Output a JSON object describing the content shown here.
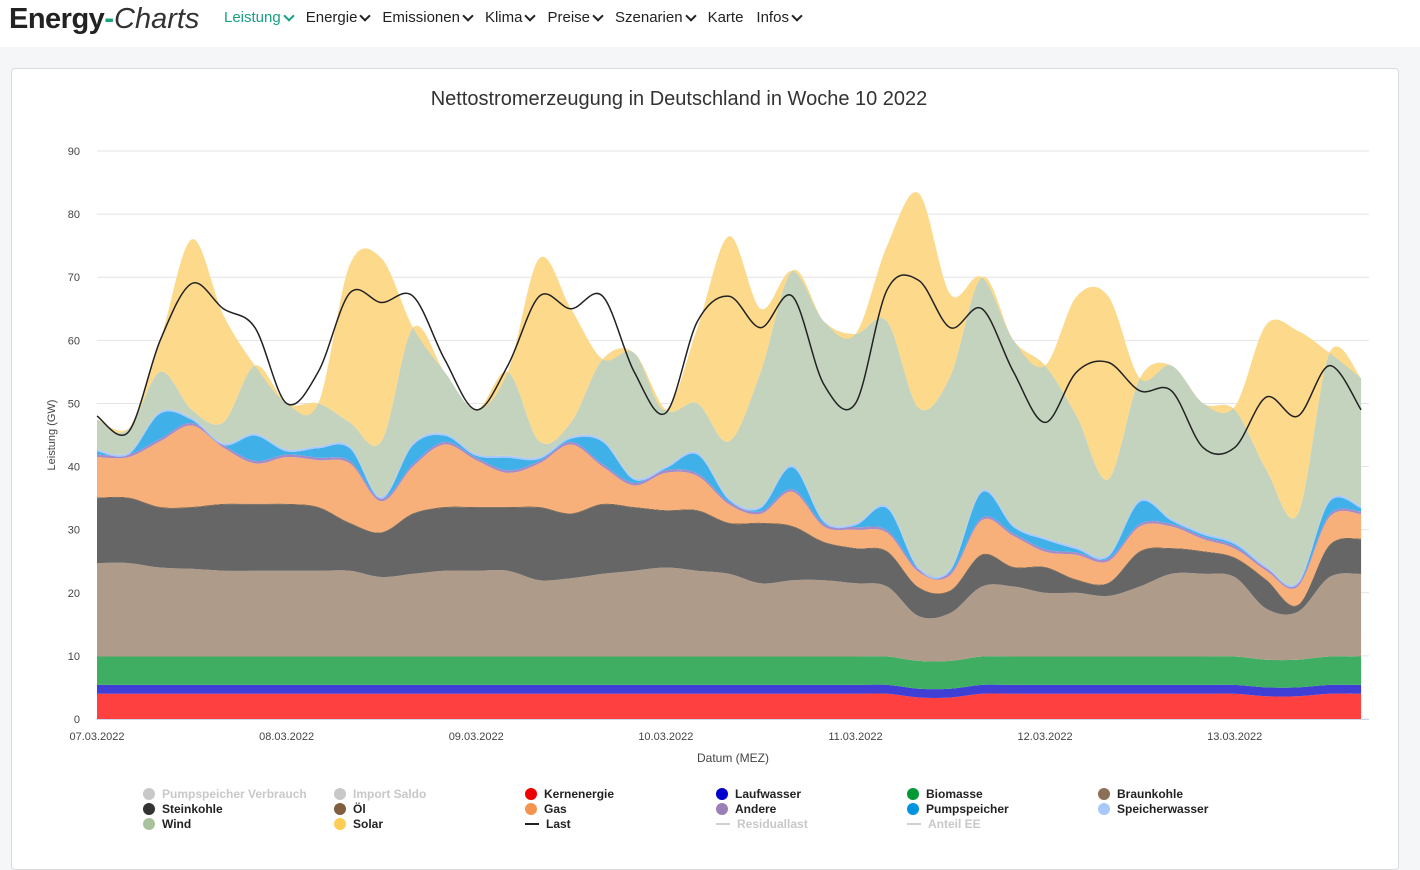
{
  "header": {
    "logo_main": "Energy",
    "logo_dash": "-",
    "logo_italic": "Charts",
    "nav": [
      {
        "label": "Leistung",
        "dropdown": true,
        "active": true
      },
      {
        "label": "Energie",
        "dropdown": true
      },
      {
        "label": "Emissionen",
        "dropdown": true
      },
      {
        "label": "Klima",
        "dropdown": true
      },
      {
        "label": "Preise",
        "dropdown": true
      },
      {
        "label": "Szenarien",
        "dropdown": true
      },
      {
        "label": "Karte",
        "dropdown": false
      },
      {
        "label": "Infos",
        "dropdown": true
      }
    ]
  },
  "chart_data": {
    "type": "area",
    "stacked": true,
    "title": "Nettostromerzeugung in Deutschland in Woche 10 2022",
    "xlabel": "Datum (MEZ)",
    "ylabel": "Leistung (GW)",
    "ylim": [
      0,
      90
    ],
    "yticks": [
      0,
      10,
      20,
      30,
      40,
      50,
      60,
      70,
      80,
      90
    ],
    "x_unit": "hours since 07.03.2022 00:00",
    "xlim": [
      0,
      161
    ],
    "xticks": [
      {
        "x": 0,
        "label": "07.03.2022"
      },
      {
        "x": 24,
        "label": "08.03.2022"
      },
      {
        "x": 48,
        "label": "09.03.2022"
      },
      {
        "x": 72,
        "label": "10.03.2022"
      },
      {
        "x": 96,
        "label": "11.03.2022"
      },
      {
        "x": 120,
        "label": "12.03.2022"
      },
      {
        "x": 144,
        "label": "13.03.2022"
      }
    ],
    "grid": true,
    "legend_position": "bottom",
    "x": [
      0,
      4,
      8,
      12,
      16,
      20,
      24,
      28,
      32,
      36,
      40,
      44,
      48,
      52,
      56,
      60,
      64,
      68,
      72,
      76,
      80,
      84,
      88,
      92,
      96,
      100,
      104,
      108,
      112,
      116,
      120,
      124,
      128,
      132,
      136,
      140,
      144,
      148,
      152,
      156,
      160
    ],
    "series": [
      {
        "name": "Kernenergie",
        "color": "#ff4040",
        "legend_color": "#ee0000",
        "values": [
          4,
          4,
          4,
          4,
          4,
          4,
          4,
          4,
          4,
          4,
          4,
          4,
          4,
          4,
          4,
          4,
          4,
          4,
          4,
          4,
          4,
          4,
          4,
          4,
          4,
          4,
          3.4,
          3.4,
          4,
          4,
          4,
          4,
          4,
          4,
          4,
          4,
          4,
          3.6,
          3.6,
          4,
          4
        ]
      },
      {
        "name": "Laufwasser",
        "color": "#3f3fd6",
        "legend_color": "#0000cc",
        "values": [
          1.4,
          1.4,
          1.4,
          1.4,
          1.4,
          1.4,
          1.4,
          1.4,
          1.4,
          1.4,
          1.4,
          1.4,
          1.4,
          1.4,
          1.4,
          1.4,
          1.4,
          1.4,
          1.4,
          1.4,
          1.4,
          1.4,
          1.4,
          1.4,
          1.4,
          1.4,
          1.4,
          1.4,
          1.4,
          1.4,
          1.4,
          1.4,
          1.4,
          1.4,
          1.4,
          1.4,
          1.4,
          1.4,
          1.4,
          1.4,
          1.4
        ]
      },
      {
        "name": "Biomasse",
        "color": "#3fae63",
        "legend_color": "#009933",
        "values": [
          4.5,
          4.5,
          4.5,
          4.5,
          4.5,
          4.5,
          4.5,
          4.5,
          4.5,
          4.5,
          4.5,
          4.5,
          4.5,
          4.5,
          4.5,
          4.5,
          4.5,
          4.5,
          4.5,
          4.5,
          4.5,
          4.5,
          4.5,
          4.5,
          4.5,
          4.5,
          4.4,
          4.4,
          4.5,
          4.5,
          4.5,
          4.5,
          4.5,
          4.5,
          4.5,
          4.5,
          4.5,
          4.4,
          4.4,
          4.5,
          4.5
        ]
      },
      {
        "name": "Braunkohle",
        "color": "#af9b8a",
        "legend_color": "#8b6f57",
        "values": [
          14.8,
          14.8,
          14.1,
          13.9,
          13.6,
          13.6,
          13.6,
          13.6,
          13.6,
          12.6,
          13.1,
          13.6,
          13.6,
          13.6,
          12.1,
          12.4,
          13.1,
          13.6,
          14.1,
          13.6,
          13.1,
          11.6,
          12.1,
          12.1,
          11.6,
          11.1,
          7.1,
          7.6,
          11.1,
          11.1,
          10.1,
          10.1,
          9.6,
          11.1,
          13.1,
          13.1,
          12.6,
          8.1,
          7.6,
          12.6,
          13.1
        ]
      },
      {
        "name": "Steinkohle",
        "color": "#666666",
        "legend_color": "#333333",
        "values": [
          10.3,
          10.3,
          9.5,
          9.7,
          10.5,
          10.5,
          10.5,
          10,
          7.5,
          7,
          9.5,
          10,
          10,
          10,
          11.5,
          10.2,
          11,
          10,
          9,
          9.5,
          8,
          9.5,
          8.5,
          6,
          5.5,
          5.5,
          4.5,
          3.5,
          5,
          3,
          4,
          2,
          2,
          5.5,
          4,
          3.5,
          3,
          4.5,
          1,
          5,
          5.5
        ]
      },
      {
        "name": "Öl",
        "color": "#7f5f3f",
        "legend_color": "#7f5f3f",
        "values": [
          0.1,
          0.1,
          0.1,
          0.1,
          0.1,
          0.1,
          0.1,
          0.1,
          0.1,
          0.1,
          0.1,
          0.1,
          0.1,
          0.1,
          0.1,
          0.1,
          0.1,
          0.1,
          0.1,
          0.1,
          0.1,
          0.1,
          0.1,
          0.1,
          0.1,
          0.1,
          0.1,
          0.1,
          0.1,
          0.1,
          0.1,
          0.1,
          0.1,
          0.1,
          0.1,
          0.1,
          0.1,
          0.1,
          0.1,
          0.1,
          0.1
        ]
      },
      {
        "name": "Gas",
        "color": "#f8b07a",
        "legend_color": "#f59450",
        "values": [
          6.4,
          6.4,
          10.4,
          12.9,
          8.9,
          6.4,
          7.4,
          7.4,
          9.4,
          4.9,
          7.4,
          9.9,
          7.4,
          5.4,
          6.9,
          10.9,
          5.9,
          3.4,
          5.9,
          5.4,
          2.9,
          1.4,
          5.4,
          2.4,
          2.9,
          2.9,
          2.4,
          2.4,
          5.4,
          4.9,
          2.4,
          3.9,
          3.4,
          3.9,
          3.4,
          1.9,
          1.4,
          1.4,
          2.9,
          4.4,
          3.9
        ]
      },
      {
        "name": "Andere",
        "color": "#a58cc8",
        "legend_color": "#9b7fb8",
        "values": [
          0.4,
          0.4,
          0.4,
          0.4,
          0.4,
          0.4,
          0.4,
          0.4,
          0.4,
          0.4,
          0.4,
          0.4,
          0.4,
          0.4,
          0.4,
          0.4,
          0.4,
          0.4,
          0.4,
          0.4,
          0.4,
          0.4,
          0.4,
          0.4,
          0.4,
          0.4,
          0.4,
          0.4,
          0.4,
          0.4,
          0.4,
          0.4,
          0.4,
          0.4,
          0.4,
          0.4,
          0.4,
          0.4,
          0.4,
          0.4,
          0.4
        ]
      },
      {
        "name": "Pumpspeicher",
        "color": "#40b0e8",
        "legend_color": "#0094e0",
        "values": [
          0.5,
          0,
          4,
          0.5,
          0,
          4,
          0.5,
          1.5,
          2,
          0,
          3,
          1,
          0.3,
          2,
          0.3,
          0.5,
          3.5,
          0.5,
          0.3,
          3,
          0.3,
          0.5,
          3.5,
          0.3,
          0.3,
          3.5,
          0,
          0.3,
          4,
          1,
          1.5,
          0.5,
          0.3,
          3.5,
          0.5,
          0.3,
          0.3,
          0,
          0,
          2,
          0.5
        ]
      },
      {
        "name": "Speicherwasser",
        "color": "#a8c8ff",
        "legend_color": "#a8c8ff",
        "values": [
          0.3,
          0.3,
          0.3,
          0.3,
          0.3,
          0.3,
          0.3,
          0.3,
          0.3,
          0.3,
          0.3,
          0.3,
          0.3,
          0.3,
          0.3,
          0.3,
          0.3,
          0.3,
          0.3,
          0.3,
          0.3,
          0.3,
          0.3,
          0.3,
          0.3,
          0.3,
          0.3,
          0.3,
          0.3,
          0.3,
          0.3,
          0.3,
          0.3,
          0.3,
          0.3,
          0.3,
          0.3,
          0.3,
          0.3,
          0.3,
          0.3
        ]
      },
      {
        "name": "Wind",
        "color": "#c3d3bd",
        "legend_color": "#a8c29f",
        "values": [
          4.8,
          3.8,
          6.3,
          1.3,
          3.3,
          10.8,
          7.3,
          6.8,
          3.8,
          8.8,
          18.3,
          9.8,
          7,
          13.3,
          2.5,
          2.3,
          12.8,
          19.8,
          9,
          7.8,
          9,
          21.3,
          30.8,
          31.5,
          30,
          29.3,
          25.3,
          30.5,
          33.8,
          29.3,
          27.3,
          20.8,
          12,
          19.3,
          24.3,
          20.5,
          21,
          15.3,
          10.8,
          23.3,
          20.3
        ]
      },
      {
        "name": "Solar",
        "color": "#fdd98c",
        "legend_color": "#ffcc55",
        "values": [
          0,
          0,
          5,
          27,
          17,
          0,
          0,
          0,
          25,
          29,
          0,
          0,
          0,
          0,
          29,
          18,
          0,
          0,
          0,
          12,
          32.5,
          10,
          0,
          0,
          0,
          12,
          34,
          13,
          0,
          0,
          0,
          19,
          29,
          0,
          0,
          0,
          0.5,
          23,
          29,
          0,
          0
        ]
      }
    ],
    "lines": [
      {
        "name": "Last",
        "color": "#222222",
        "values": [
          48,
          45.5,
          60,
          69,
          65,
          62,
          50,
          55,
          67.5,
          66,
          67,
          57,
          49,
          56,
          67,
          65,
          67,
          55,
          48.5,
          63,
          67,
          62,
          67,
          53,
          50,
          68,
          69.5,
          62,
          65,
          55,
          47,
          55,
          56.5,
          52,
          52,
          43,
          43,
          51,
          48,
          56,
          49
        ]
      }
    ],
    "legend": [
      {
        "label": "Pumpspeicher Verbrauch",
        "marker": "dot",
        "color": "#c8c8c8",
        "hidden": true
      },
      {
        "label": "Import Saldo",
        "marker": "dot",
        "color": "#c8c8c8",
        "hidden": true
      },
      {
        "label": "Kernenergie",
        "marker": "dot",
        "color": "#ee0000"
      },
      {
        "label": "Laufwasser",
        "marker": "dot",
        "color": "#0000cc"
      },
      {
        "label": "Biomasse",
        "marker": "dot",
        "color": "#009933"
      },
      {
        "label": "Braunkohle",
        "marker": "dot",
        "color": "#8b6f57"
      },
      {
        "label": "Steinkohle",
        "marker": "dot",
        "color": "#333333"
      },
      {
        "label": "Öl",
        "marker": "dot",
        "color": "#7f5f3f"
      },
      {
        "label": "Gas",
        "marker": "dot",
        "color": "#f59450"
      },
      {
        "label": "Andere",
        "marker": "dot",
        "color": "#9b7fb8"
      },
      {
        "label": "Pumpspeicher",
        "marker": "dot",
        "color": "#0094e0"
      },
      {
        "label": "Speicherwasser",
        "marker": "dot",
        "color": "#a8c8ff"
      },
      {
        "label": "Wind",
        "marker": "dot",
        "color": "#a8c29f"
      },
      {
        "label": "Solar",
        "marker": "dot",
        "color": "#ffcc55"
      },
      {
        "label": "Last",
        "marker": "line",
        "color": "#222222"
      },
      {
        "label": "Residuallast",
        "marker": "line",
        "color": "#d0d0d0",
        "hidden": true
      },
      {
        "label": "Anteil EE",
        "marker": "line",
        "color": "#d0d0d0",
        "hidden": true
      }
    ]
  }
}
